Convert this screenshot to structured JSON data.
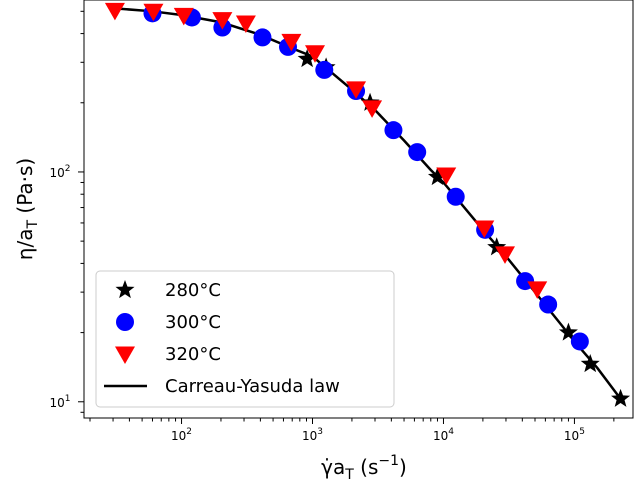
{
  "chart_data": {
    "type": "scatter",
    "title": "",
    "xlabel_base": "γ̇a",
    "xlabel_sub": "T",
    "xlabel_unit": " (s",
    "xlabel_exp": "−1",
    "xlabel_close": ")",
    "ylabel_base": "η/a",
    "ylabel_sub": "T",
    "ylabel_unit": " (Pa·s)",
    "x_scale": "log",
    "y_scale": "log",
    "xlim": [
      18,
      280000
    ],
    "ylim": [
      8.5,
      560
    ],
    "x_ticks": [
      {
        "value": 100,
        "base": "10",
        "exp": "2"
      },
      {
        "value": 1000,
        "base": "10",
        "exp": "3"
      },
      {
        "value": 10000,
        "base": "10",
        "exp": "4"
      },
      {
        "value": 100000,
        "base": "10",
        "exp": "5"
      }
    ],
    "y_ticks": [
      {
        "value": 10,
        "base": "10",
        "exp": "1"
      },
      {
        "value": 100,
        "base": "10",
        "exp": "2"
      }
    ],
    "grid": false,
    "legend_position": "lower-left",
    "series": [
      {
        "name": "280°C",
        "marker": "star",
        "color": "#000000",
        "points": [
          [
            910,
            310
          ],
          [
            1270,
            285
          ],
          [
            2750,
            200
          ],
          [
            9000,
            95
          ],
          [
            25500,
            47
          ],
          [
            90000,
            20
          ],
          [
            132000,
            14.6
          ],
          [
            225000,
            10.3
          ]
        ]
      },
      {
        "name": "300°C",
        "marker": "circle",
        "color": "#0000ff",
        "points": [
          [
            60,
            490
          ],
          [
            120,
            470
          ],
          [
            205,
            425
          ],
          [
            415,
            385
          ],
          [
            650,
            350
          ],
          [
            1230,
            278
          ],
          [
            2150,
            225
          ],
          [
            4150,
            152
          ],
          [
            6300,
            122
          ],
          [
            12400,
            78
          ],
          [
            20800,
            56
          ],
          [
            42000,
            33.5
          ],
          [
            63000,
            26.5
          ],
          [
            110000,
            18.3
          ]
        ]
      },
      {
        "name": "320°C",
        "marker": "triangle-down",
        "color": "#ff0000",
        "points": [
          [
            31,
            505
          ],
          [
            61,
            500
          ],
          [
            104,
            480
          ],
          [
            205,
            460
          ],
          [
            310,
            445
          ],
          [
            690,
            370
          ],
          [
            1045,
            330
          ],
          [
            2150,
            230
          ],
          [
            2850,
            190
          ],
          [
            10500,
            97
          ],
          [
            20500,
            57
          ],
          [
            29500,
            44
          ],
          [
            52000,
            31
          ]
        ]
      },
      {
        "name": "Carreau-Yasuda law",
        "marker": "line",
        "color": "#000000",
        "points": [
          [
            31,
            515
          ],
          [
            60,
            500
          ],
          [
            100,
            482
          ],
          [
            200,
            448
          ],
          [
            400,
            395
          ],
          [
            700,
            345
          ],
          [
            1000,
            318
          ],
          [
            2000,
            228
          ],
          [
            3000,
            186
          ],
          [
            5000,
            137
          ],
          [
            8000,
            102
          ],
          [
            10000,
            90
          ],
          [
            20000,
            56
          ],
          [
            30000,
            43
          ],
          [
            50000,
            30
          ],
          [
            80000,
            21.5
          ],
          [
            100000,
            18.3
          ],
          [
            150000,
            14
          ],
          [
            225000,
            10.3
          ]
        ]
      }
    ]
  }
}
